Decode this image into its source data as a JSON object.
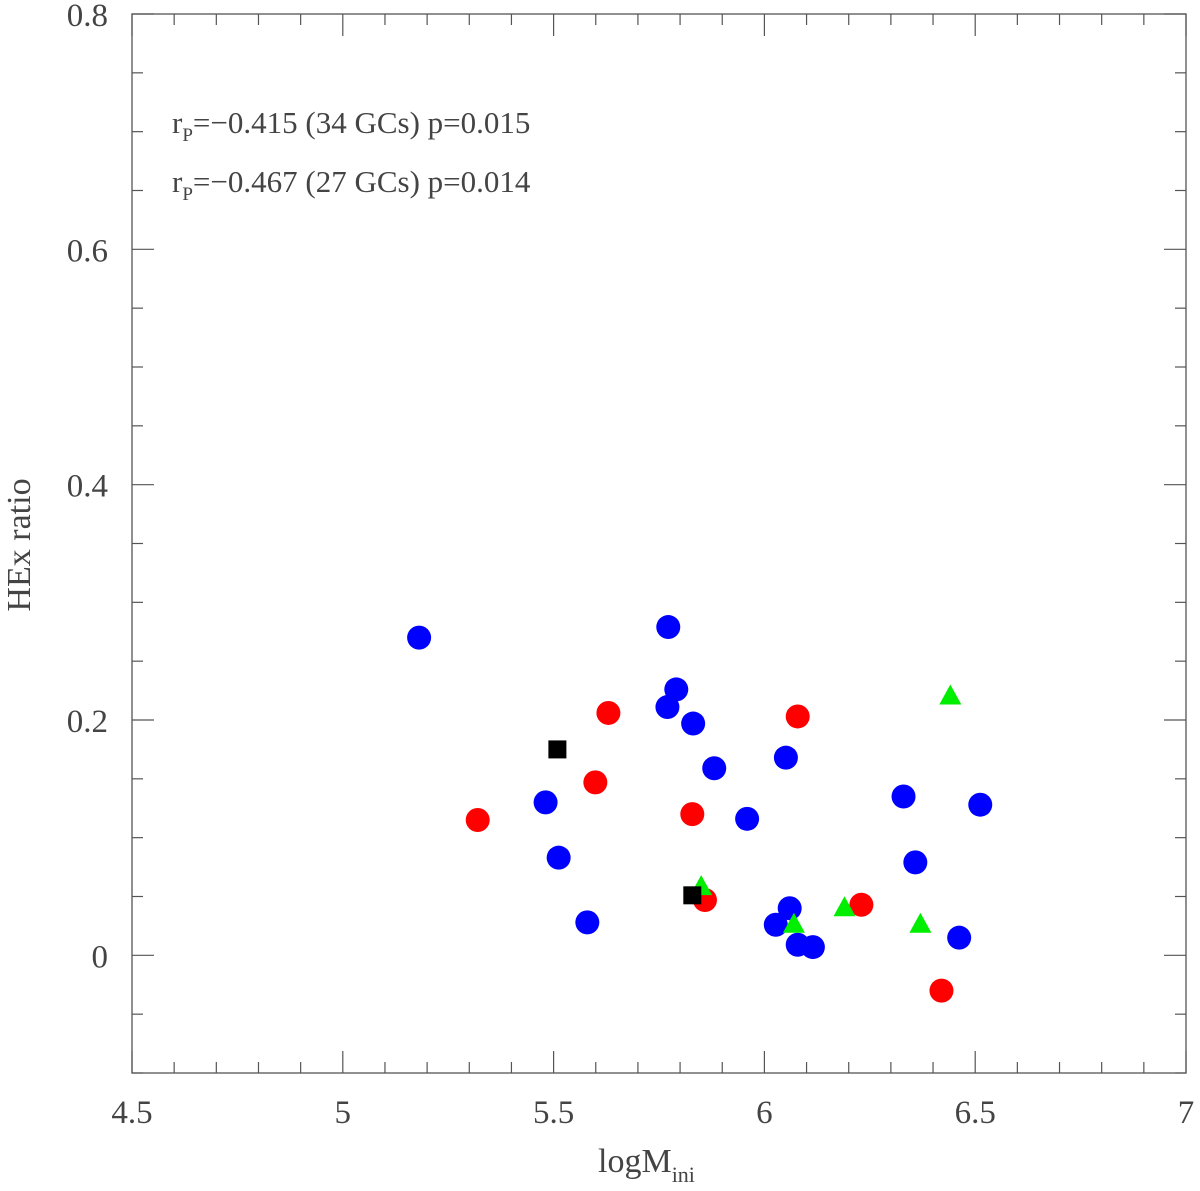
{
  "chart_data": {
    "type": "scatter",
    "title": "",
    "xlabel": "logM",
    "xlabel_sub": "ini",
    "ylabel": "HEx ratio",
    "xlim": [
      4.5,
      7
    ],
    "ylim": [
      -0.1,
      0.8
    ],
    "x_ticks": [
      4.5,
      5,
      5.5,
      6,
      6.5,
      7
    ],
    "x_tick_labels": [
      "4.5",
      "5",
      "5.5",
      "6",
      "6.5",
      "7"
    ],
    "y_ticks": [
      0,
      0.2,
      0.4,
      0.6,
      0.8
    ],
    "y_tick_labels": [
      "0",
      "0.2",
      "0.4",
      "0.6",
      "0.8"
    ],
    "grid": false,
    "annotations": [
      {
        "r": "r",
        "sub": "P",
        "text": "=−0.415 (34 GCs) p=0.015"
      },
      {
        "r": "r",
        "sub": "P",
        "text": "=−0.467 (27 GCs) p=0.014"
      }
    ],
    "series": [
      {
        "marker": "circle",
        "color": "#0000ff",
        "points": [
          [
            5.181,
            0.27
          ],
          [
            5.481,
            0.13
          ],
          [
            5.512,
            0.083
          ],
          [
            5.58,
            0.028
          ],
          [
            5.772,
            0.279
          ],
          [
            5.791,
            0.226
          ],
          [
            5.77,
            0.211
          ],
          [
            5.831,
            0.197
          ],
          [
            5.881,
            0.159
          ],
          [
            5.959,
            0.116
          ],
          [
            6.051,
            0.168
          ],
          [
            6.027,
            0.026
          ],
          [
            6.06,
            0.04
          ],
          [
            6.079,
            0.009
          ],
          [
            6.115,
            0.007
          ],
          [
            6.33,
            0.135
          ],
          [
            6.358,
            0.079
          ],
          [
            6.462,
            0.015
          ],
          [
            6.512,
            0.128
          ]
        ]
      },
      {
        "marker": "circle",
        "color": "#ff0000",
        "points": [
          [
            5.32,
            0.115
          ],
          [
            5.599,
            0.147
          ],
          [
            5.63,
            0.206
          ],
          [
            5.829,
            0.12
          ],
          [
            5.859,
            0.047
          ],
          [
            6.079,
            0.203
          ],
          [
            6.23,
            0.043
          ],
          [
            6.42,
            -0.03
          ]
        ]
      },
      {
        "marker": "triangle",
        "color": "#00ee00",
        "points": [
          [
            6.441,
            0.22
          ],
          [
            5.85,
            0.058
          ],
          [
            6.07,
            0.026
          ],
          [
            6.19,
            0.04
          ],
          [
            6.37,
            0.026
          ]
        ]
      },
      {
        "marker": "square",
        "color": "#000000",
        "points": [
          [
            5.509,
            0.175
          ],
          [
            5.829,
            0.051
          ]
        ]
      }
    ]
  }
}
